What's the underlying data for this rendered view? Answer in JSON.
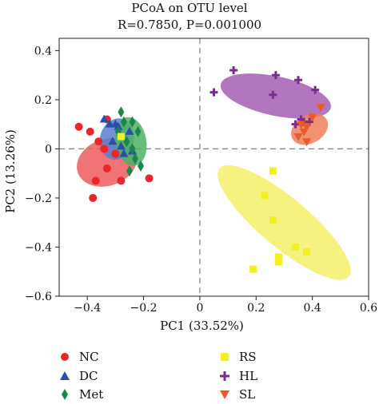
{
  "chart_data": {
    "type": "scatter",
    "title": "PCoA on OTU level",
    "subtitle": "R=0.7850, P=0.001000",
    "xlabel": "PC1 (33.52%)",
    "ylabel": "PC2 (13.26%)",
    "xlim": [
      -0.5,
      0.6
    ],
    "ylim": [
      -0.6,
      0.45
    ],
    "x_ticks": [
      "−0.4",
      "−0.2",
      "0",
      "0.2",
      "0.4",
      "0.6"
    ],
    "x_tick_values": [
      -0.4,
      -0.2,
      0,
      0.2,
      0.4,
      0.6
    ],
    "y_ticks": [
      "0.4",
      "0.2",
      "0",
      "−0.2",
      "−0.4",
      "−0.6"
    ],
    "y_tick_values": [
      0.4,
      0.2,
      0,
      -0.2,
      -0.4,
      -0.6
    ],
    "reference_lines": "dashed at x=0 and y=0",
    "legend_position": "bottom",
    "series": [
      {
        "name": "NC",
        "color": "#e8262b",
        "marker": "circle",
        "points": [
          [
            -0.43,
            0.09
          ],
          [
            -0.39,
            0.07
          ],
          [
            -0.36,
            0.03
          ],
          [
            -0.34,
            0.0
          ],
          [
            -0.3,
            -0.02
          ],
          [
            -0.33,
            -0.08
          ],
          [
            -0.37,
            -0.13
          ],
          [
            -0.38,
            -0.2
          ],
          [
            -0.28,
            -0.13
          ],
          [
            -0.18,
            -0.12
          ],
          [
            -0.33,
            0.12
          ]
        ],
        "ellipse": {
          "cx": -0.33,
          "cy": -0.055,
          "rx": 0.11,
          "ry": 0.095,
          "angle_deg": 20
        }
      },
      {
        "name": "DC",
        "color": "#2a4fa8",
        "marker": "triangle-up",
        "points": [
          [
            -0.34,
            0.12
          ],
          [
            -0.32,
            0.1
          ],
          [
            -0.3,
            0.1
          ],
          [
            -0.31,
            0.03
          ],
          [
            -0.28,
            0.01
          ],
          [
            -0.27,
            -0.02
          ],
          [
            -0.25,
            0.07
          ],
          [
            -0.24,
            -0.01
          ],
          [
            -0.29,
            0.09
          ]
        ],
        "ellipse": {
          "cx": -0.295,
          "cy": 0.04,
          "rx": 0.06,
          "ry": 0.085,
          "angle_deg": -15
        }
      },
      {
        "name": "Met",
        "color": "#19874a",
        "marker": "diamond",
        "points": [
          [
            -0.28,
            0.15
          ],
          [
            -0.27,
            0.11
          ],
          [
            -0.29,
            0.07
          ],
          [
            -0.24,
            0.11
          ],
          [
            -0.22,
            0.07
          ],
          [
            -0.26,
            0.03
          ],
          [
            -0.23,
            -0.04
          ],
          [
            -0.25,
            -0.09
          ],
          [
            -0.21,
            -0.07
          ],
          [
            -0.24,
            0.0
          ]
        ],
        "ellipse": {
          "cx": -0.245,
          "cy": 0.03,
          "rx": 0.055,
          "ry": 0.1,
          "angle_deg": 10
        }
      },
      {
        "name": "RS",
        "color": "#f3f01c",
        "marker": "square",
        "points": [
          [
            -0.28,
            0.05
          ],
          [
            0.26,
            -0.09
          ],
          [
            0.23,
            -0.19
          ],
          [
            0.26,
            -0.29
          ],
          [
            0.28,
            -0.44
          ],
          [
            0.28,
            -0.46
          ],
          [
            0.34,
            -0.4
          ],
          [
            0.38,
            -0.42
          ],
          [
            0.19,
            -0.49
          ]
        ],
        "ellipse": {
          "cx": 0.3,
          "cy": -0.3,
          "rx": 0.3,
          "ry": 0.1,
          "angle_deg": -40
        }
      },
      {
        "name": "HL",
        "color": "#7b2c8f",
        "marker": "plus",
        "points": [
          [
            0.05,
            0.23
          ],
          [
            0.12,
            0.32
          ],
          [
            0.27,
            0.3
          ],
          [
            0.35,
            0.28
          ],
          [
            0.41,
            0.24
          ],
          [
            0.26,
            0.22
          ],
          [
            0.36,
            0.12
          ],
          [
            0.37,
            0.11
          ],
          [
            0.39,
            0.11
          ],
          [
            0.34,
            0.1
          ]
        ],
        "ellipse": {
          "cx": 0.27,
          "cy": 0.215,
          "rx": 0.2,
          "ry": 0.08,
          "angle_deg": -12
        }
      },
      {
        "name": "SL",
        "color": "#ec5b26",
        "marker": "triangle-down",
        "points": [
          [
            0.43,
            0.17
          ],
          [
            0.4,
            0.13
          ],
          [
            0.36,
            0.1
          ],
          [
            0.38,
            0.09
          ],
          [
            0.35,
            0.05
          ],
          [
            0.38,
            0.03
          ],
          [
            0.37,
            0.07
          ]
        ],
        "ellipse": {
          "cx": 0.39,
          "cy": 0.08,
          "rx": 0.05,
          "ry": 0.08,
          "angle_deg": -60
        }
      }
    ],
    "ellipse_colors": {
      "NC": "#ef5a5e",
      "DC": "#5b7fcf",
      "Met": "#4fb264",
      "RS": "#f5f06a",
      "HL": "#a35eb2",
      "SL": "#f07f5b"
    }
  }
}
